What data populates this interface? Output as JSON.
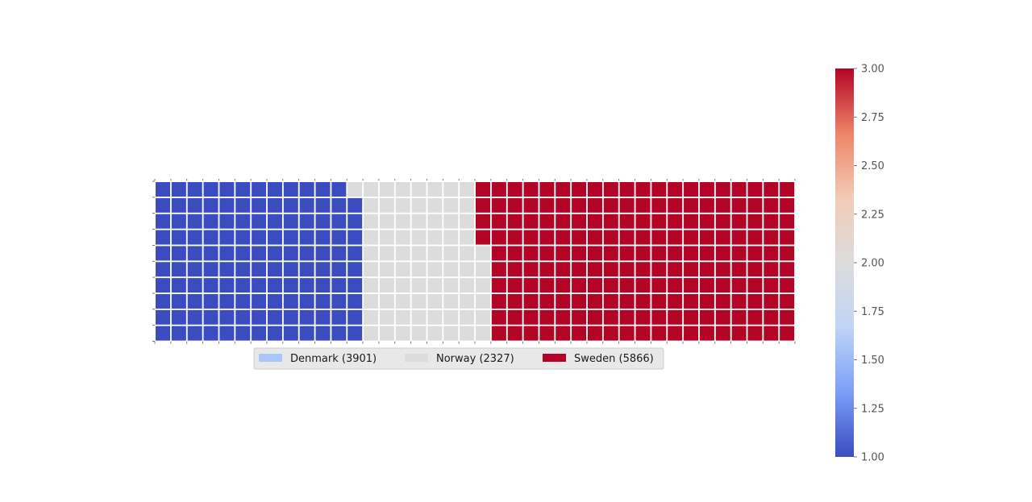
{
  "chart_data": {
    "type": "waffle",
    "rows": 10,
    "columns": 40,
    "series": [
      {
        "name": "Denmark",
        "value": 3901,
        "label": "Denmark (3901)",
        "color": "#3b4cc0",
        "legend_color": "#aac7fd"
      },
      {
        "name": "Norway",
        "value": 2327,
        "label": "Norway (2327)",
        "color": "#dddcdc",
        "legend_color": "#dddcdc"
      },
      {
        "name": "Sweden",
        "value": 5866,
        "label": "Sweden (5866)",
        "color": "#b40426",
        "legend_color": "#b40426"
      }
    ],
    "legend_placement": "below-center",
    "colorbar": {
      "min": 1.0,
      "max": 3.0,
      "ticks": [
        "1.00",
        "1.25",
        "1.50",
        "1.75",
        "2.00",
        "2.25",
        "2.50",
        "2.75",
        "3.00"
      ],
      "colormap": "coolwarm",
      "colormap_stops": [
        "#3b4cc0",
        "#7b9ff9",
        "#c0d4f5",
        "#dddcdc",
        "#f2cbb7",
        "#ee8468",
        "#b40426"
      ]
    }
  }
}
